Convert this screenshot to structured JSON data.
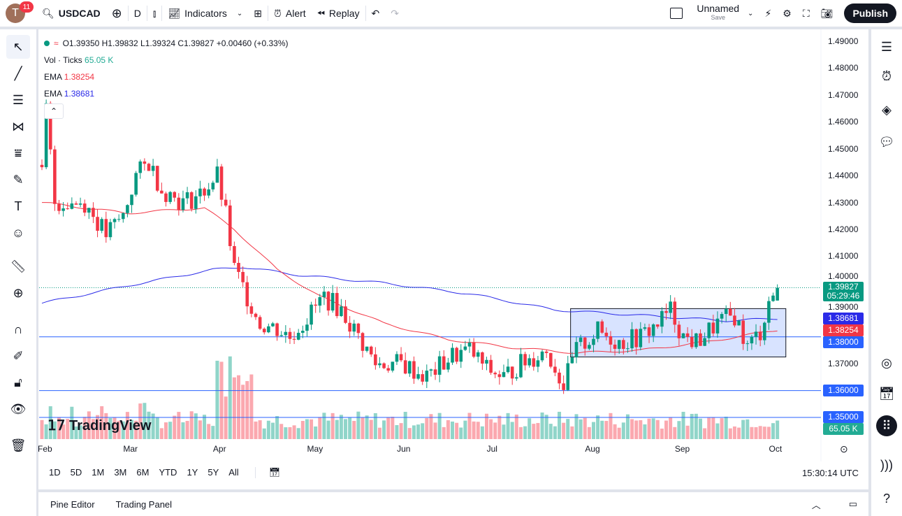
{
  "topbar": {
    "avatar_letter": "T",
    "notifications": "11",
    "symbol": "USDCAD",
    "interval": "D",
    "indicators": "Indicators",
    "alert": "Alert",
    "replay": "Replay",
    "layout_name": "Unnamed",
    "layout_status": "Save",
    "publish": "Publish"
  },
  "legend": {
    "ohlc": "O1.39350 H1.39832 L1.39324 C1.39827 +0.00460 (+0.33%)",
    "vol_label": "Vol · Ticks",
    "vol_value": "65.05 K",
    "ema1_label": "EMA",
    "ema1_value": "1.38254",
    "ema2_label": "EMA",
    "ema2_value": "1.38681"
  },
  "price_axis": {
    "ticks": [
      "1.49000",
      "1.48000",
      "1.47000",
      "1.46000",
      "1.45000",
      "1.44000",
      "1.43000",
      "1.42000",
      "1.41000",
      "1.40000",
      "1.39000",
      "1.37000"
    ],
    "labels": {
      "last": "1.39827",
      "countdown": "05:29:46",
      "ema200": "1.38681",
      "ema50": "1.38254",
      "line_138": "1.38000",
      "line_136": "1.36000",
      "line_135": "1.35000",
      "volume": "65.05 K"
    }
  },
  "time_axis": [
    "Feb",
    "Mar",
    "Apr",
    "May",
    "Jun",
    "Jul",
    "Aug",
    "Sep",
    "Oct"
  ],
  "ranges": [
    "1D",
    "5D",
    "1M",
    "3M",
    "6M",
    "YTD",
    "1Y",
    "5Y",
    "All"
  ],
  "clock": "15:30:14 UTC",
  "bottom": {
    "pine": "Pine Editor",
    "panel": "Trading Panel"
  },
  "watermark": "TradingView",
  "colors": {
    "up": "#089981",
    "down": "#f23645",
    "ema50": "#f23645",
    "ema200": "#2a2ae8",
    "hline": "#2962ff"
  },
  "chart_data": {
    "type": "candlestick",
    "ylim": [
      1.35,
      1.49
    ],
    "close_keypoints": [
      [
        0,
        1.44
      ],
      [
        1,
        1.465
      ],
      [
        3,
        1.43
      ],
      [
        10,
        1.43
      ],
      [
        15,
        1.418
      ],
      [
        19,
        1.425
      ],
      [
        22,
        1.44
      ],
      [
        25,
        1.445
      ],
      [
        28,
        1.435
      ],
      [
        33,
        1.43
      ],
      [
        37,
        1.433
      ],
      [
        41,
        1.44
      ],
      [
        43,
        1.425
      ],
      [
        45,
        1.405
      ],
      [
        48,
        1.395
      ],
      [
        51,
        1.385
      ],
      [
        55,
        1.383
      ],
      [
        58,
        1.38
      ],
      [
        62,
        1.387
      ],
      [
        66,
        1.395
      ],
      [
        70,
        1.39
      ],
      [
        74,
        1.38
      ],
      [
        78,
        1.37
      ],
      [
        84,
        1.37
      ],
      [
        90,
        1.365
      ],
      [
        96,
        1.373
      ],
      [
        100,
        1.375
      ],
      [
        104,
        1.368
      ],
      [
        108,
        1.365
      ],
      [
        112,
        1.37
      ],
      [
        118,
        1.375
      ],
      [
        122,
        1.362
      ],
      [
        125,
        1.375
      ],
      [
        130,
        1.382
      ],
      [
        135,
        1.378
      ],
      [
        140,
        1.38
      ],
      [
        144,
        1.385
      ],
      [
        147,
        1.39
      ],
      [
        150,
        1.38
      ],
      [
        153,
        1.378
      ],
      [
        158,
        1.385
      ],
      [
        162,
        1.388
      ],
      [
        165,
        1.376
      ],
      [
        168,
        1.382
      ],
      [
        170,
        1.393
      ],
      [
        172,
        1.39827
      ]
    ],
    "ema50": [
      [
        0,
        1.43
      ],
      [
        20,
        1.426
      ],
      [
        38,
        1.428
      ],
      [
        45,
        1.42
      ],
      [
        55,
        1.405
      ],
      [
        65,
        1.395
      ],
      [
        80,
        1.385
      ],
      [
        95,
        1.379
      ],
      [
        110,
        1.376
      ],
      [
        125,
        1.374
      ],
      [
        140,
        1.375
      ],
      [
        155,
        1.378
      ],
      [
        172,
        1.38254
      ]
    ],
    "ema200": [
      [
        0,
        1.3925
      ],
      [
        20,
        1.399
      ],
      [
        40,
        1.405
      ],
      [
        47,
        1.406
      ],
      [
        60,
        1.403
      ],
      [
        80,
        1.4
      ],
      [
        100,
        1.396
      ],
      [
        120,
        1.39
      ],
      [
        140,
        1.388
      ],
      [
        160,
        1.386
      ],
      [
        172,
        1.38681
      ]
    ],
    "hlines": [
      1.38,
      1.36,
      1.35
    ],
    "range_box": {
      "from": 122,
      "to": 173,
      "top": 1.3905,
      "bottom": 1.3725
    }
  }
}
